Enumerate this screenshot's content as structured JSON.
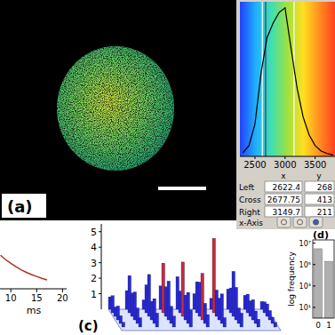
{
  "image_panel": {
    "label": "(a)"
  },
  "readout": {
    "headers": [
      "x",
      "y"
    ],
    "rows": [
      {
        "label": "Left",
        "x": 2622.4,
        "y": 268
      },
      {
        "label": "Cross",
        "x": 2677.75,
        "y": 413
      },
      {
        "label": "Right",
        "x": 3149.7,
        "y": 211
      }
    ],
    "axis_label": "x-Axis"
  },
  "chart_data": [
    {
      "type": "line",
      "x": [
        2300,
        2400,
        2500,
        2600,
        2700,
        2800,
        2900,
        3000,
        3100,
        3200,
        3300,
        3400,
        3500,
        3600,
        3700,
        3800
      ],
      "values": [
        10,
        30,
        90,
        230,
        330,
        370,
        400,
        413,
        300,
        190,
        110,
        60,
        30,
        15,
        8,
        4
      ],
      "xlim": [
        2250,
        3830
      ],
      "ylim": [
        0,
        430
      ],
      "xticks": [
        2500,
        3000,
        3500
      ],
      "tick_labels": "x",
      "color": "#000000"
    },
    {
      "type": "line",
      "x": [
        8,
        9,
        10,
        11,
        12,
        13,
        14,
        15,
        16,
        17
      ],
      "values": [
        1.0,
        0.88,
        0.78,
        0.69,
        0.61,
        0.54,
        0.48,
        0.43,
        0.38,
        0.34
      ],
      "xlabel": "ms",
      "xlim": [
        7.9,
        20.8
      ],
      "ylim": [
        0.1,
        1.1
      ],
      "xticks": [
        10,
        15,
        20
      ],
      "tick_labels": "x",
      "color": "#b03020"
    },
    {
      "type": "bar3d",
      "annotations": [
        "(c)"
      ],
      "values": [
        [
          0.8,
          1.2,
          0.6,
          1.5,
          2.1,
          1.0,
          0.7,
          1.3,
          0.9,
          0.5
        ],
        [
          1.1,
          2.4,
          1.8,
          3.2,
          1.4,
          2.0,
          4.8,
          1.6,
          1.2,
          0.7
        ],
        [
          0.6,
          1.5,
          2.7,
          1.9,
          3.5,
          2.2,
          1.7,
          2.9,
          1.0,
          0.8
        ],
        [
          0.9,
          1.8,
          1.2,
          2.5,
          1.6,
          3.0,
          1.4,
          2.1,
          1.3,
          0.6
        ],
        [
          0.5,
          1.0,
          1.6,
          1.1,
          2.0,
          1.3,
          1.9,
          1.0,
          0.8,
          0.4
        ],
        [
          0.3,
          0.6,
          0.9,
          0.7,
          1.1,
          0.8,
          0.6,
          0.9,
          0.5,
          0.3
        ]
      ],
      "zlim": [
        0,
        5.5
      ],
      "zticks": [
        1,
        2,
        3,
        4,
        5
      ],
      "color": "#2a2ad0"
    },
    {
      "type": "bar",
      "annotations": [
        "(d)"
      ],
      "ylabel": "log frequency",
      "log": "y",
      "categories": [
        "0",
        "1"
      ],
      "values": [
        3000000,
        200000
      ],
      "ylim": [
        1,
        20000000
      ],
      "yticks": [
        {
          "value": 10,
          "label": "10¹"
        },
        {
          "value": 1000,
          "label": "10³"
        },
        {
          "value": 100000,
          "label": "10⁵"
        },
        {
          "value": 10000000,
          "label": "10⁷"
        }
      ],
      "color": "#b0b0b0"
    }
  ]
}
